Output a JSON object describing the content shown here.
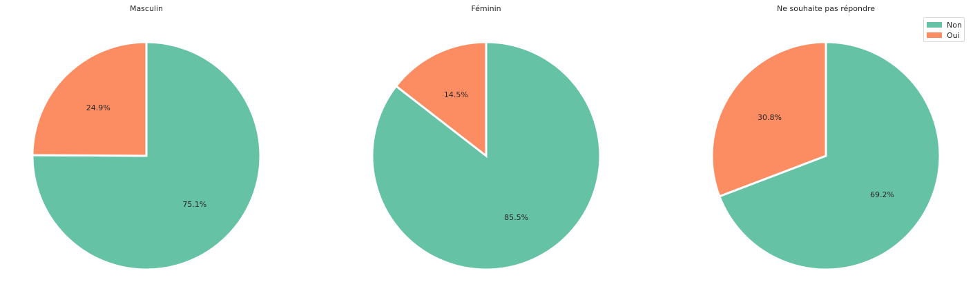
{
  "colors": {
    "Non": "#66c2a5",
    "Oui": "#fc8d62"
  },
  "legend": {
    "entries": [
      {
        "label": "Non",
        "color": "#66c2a5"
      },
      {
        "label": "Oui",
        "color": "#fc8d62"
      }
    ]
  },
  "chart_data": [
    {
      "type": "pie",
      "title": "Masculin",
      "labels": [
        "Non",
        "Oui"
      ],
      "values": [
        75.1,
        24.9
      ],
      "value_labels": [
        "75.1%",
        "24.9%"
      ],
      "start_angle_deg": 90,
      "direction": "clockwise"
    },
    {
      "type": "pie",
      "title": "Féminin",
      "labels": [
        "Non",
        "Oui"
      ],
      "values": [
        85.5,
        14.5
      ],
      "value_labels": [
        "85.5%",
        "14.5%"
      ],
      "start_angle_deg": 90,
      "direction": "clockwise"
    },
    {
      "type": "pie",
      "title": "Ne souhaite pas répondre",
      "labels": [
        "Non",
        "Oui"
      ],
      "values": [
        69.2,
        30.8
      ],
      "value_labels": [
        "69.2%",
        "30.8%"
      ],
      "start_angle_deg": 90,
      "direction": "clockwise",
      "legend": "top-right"
    }
  ]
}
